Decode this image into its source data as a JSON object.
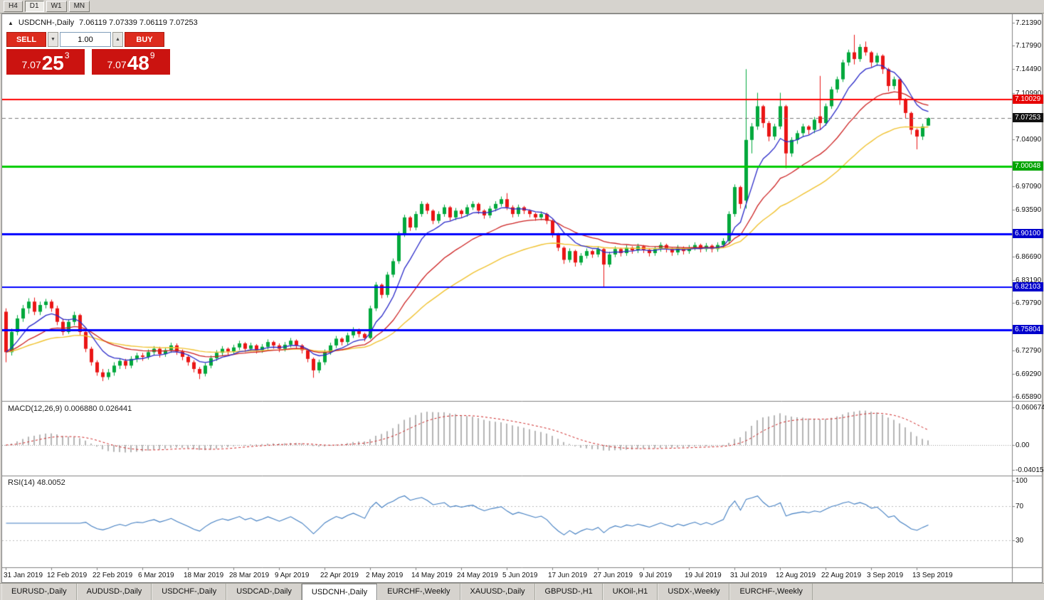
{
  "toolbar": {
    "timeframes": [
      "H4",
      "D1",
      "W1",
      "MN"
    ],
    "active": "D1"
  },
  "chart": {
    "title": "USDCNH-,Daily",
    "ohlc_text": "7.06119 7.07339 7.06119 7.07253"
  },
  "trade_panel": {
    "sell_label": "SELL",
    "buy_label": "BUY",
    "volume": "1.00",
    "sell_price_main": "7.07",
    "sell_price_big": "25",
    "sell_price_sup": "3",
    "buy_price_main": "7.07",
    "buy_price_big": "48",
    "buy_price_sup": "9",
    "panel_red": "#cb1310"
  },
  "price_axis": {
    "ticks": [
      "7.21390",
      "7.17990",
      "7.14490",
      "7.10990",
      "7.04090",
      "6.97090",
      "6.93590",
      "6.86690",
      "6.83190",
      "6.79790",
      "6.72790",
      "6.69290",
      "6.65890"
    ],
    "badges": [
      {
        "value": "7.10029",
        "bg": "#e60000"
      },
      {
        "value": "7.07253",
        "bg": "#111111"
      },
      {
        "value": "7.00048",
        "bg": "#00a400"
      },
      {
        "value": "6.90100",
        "bg": "#0000cc"
      },
      {
        "value": "6.82103",
        "bg": "#0000cc"
      },
      {
        "value": "6.75804",
        "bg": "#0000cc"
      }
    ]
  },
  "levels": [
    {
      "price": 7.10029,
      "color": "#ff0000",
      "width": 2
    },
    {
      "price": 7.00048,
      "color": "#00cc00",
      "width": 3
    },
    {
      "price": 6.901,
      "color": "#0000ff",
      "width": 3
    },
    {
      "price": 6.82103,
      "color": "#0000ff",
      "width": 2
    },
    {
      "price": 6.75804,
      "color": "#0000ff",
      "width": 3
    }
  ],
  "current_price": 7.07253,
  "macd": {
    "label": "MACD(12,26,9) 0.006880 0.026441",
    "axis_max": "0.060674",
    "axis_zero": "0.00",
    "axis_min": "-0.040152",
    "fast": 12,
    "slow": 26,
    "signal": 9
  },
  "rsi": {
    "label": "RSI(14) 48.0052",
    "period": 14,
    "levels": [
      "100",
      "70",
      "30"
    ]
  },
  "date_axis": [
    "31 Jan 2019",
    "12 Feb 2019",
    "22 Feb 2019",
    "6 Mar 2019",
    "18 Mar 2019",
    "28 Mar 2019",
    "9 Apr 2019",
    "22 Apr 2019",
    "2 May 2019",
    "14 May 2019",
    "24 May 2019",
    "5 Jun 2019",
    "17 Jun 2019",
    "27 Jun 2019",
    "9 Jul 2019",
    "19 Jul 2019",
    "31 Jul 2019",
    "12 Aug 2019",
    "22 Aug 2019",
    "3 Sep 2019",
    "13 Sep 2019"
  ],
  "tabs": {
    "items": [
      "EURUSD-,Daily",
      "AUDUSD-,Daily",
      "USDCHF-,Daily",
      "USDCAD-,Daily",
      "USDCNH-,Daily",
      "EURCHF-,Weekly",
      "XAUUSD-,Daily",
      "GBPUSD-,H1",
      "UKOil-,H1",
      "USDX-,Weekly",
      "EURCHF-,Weekly"
    ],
    "active_index": 4
  },
  "chart_data": {
    "type": "candlestick",
    "symbol": "USDCNH",
    "timeframe": "Daily",
    "price_range": [
      6.6589,
      7.2139
    ],
    "label_every_n_bars": 8,
    "x_labels": [
      "31 Jan 2019",
      "12 Feb 2019",
      "22 Feb 2019",
      "6 Mar 2019",
      "18 Mar 2019",
      "28 Mar 2019",
      "9 Apr 2019",
      "22 Apr 2019",
      "2 May 2019",
      "14 May 2019",
      "24 May 2019",
      "5 Jun 2019",
      "17 Jun 2019",
      "27 Jun 2019",
      "9 Jul 2019",
      "19 Jul 2019",
      "31 Jul 2019",
      "12 Aug 2019",
      "22 Aug 2019",
      "3 Sep 2019",
      "13 Sep 2019"
    ],
    "colors": {
      "up": "#00a83c",
      "down": "#ea1515",
      "ma_fast": "#2929c8",
      "ma_mid": "#cc2020",
      "ma_slow": "#f0c230",
      "macd_hist": "#b4b4b4",
      "macd_signal": "#cc2020",
      "rsi": "#3f7cc0"
    },
    "overlays": [
      {
        "name": "ma-fast",
        "period": 8
      },
      {
        "name": "ma-mid",
        "period": 20
      },
      {
        "name": "ma-slow",
        "period": 40
      }
    ],
    "candles_ohlc": [
      [
        6.785,
        6.79,
        6.71,
        6.725
      ],
      [
        6.725,
        6.76,
        6.72,
        6.755
      ],
      [
        6.755,
        6.78,
        6.75,
        6.775
      ],
      [
        6.775,
        6.795,
        6.77,
        6.79
      ],
      [
        6.79,
        6.805,
        6.782,
        6.8
      ],
      [
        6.8,
        6.806,
        6.78,
        6.785
      ],
      [
        6.785,
        6.8,
        6.78,
        6.795
      ],
      [
        6.795,
        6.804,
        6.79,
        6.8
      ],
      [
        6.8,
        6.803,
        6.785,
        6.79
      ],
      [
        6.79,
        6.794,
        6.765,
        6.77
      ],
      [
        6.77,
        6.775,
        6.75,
        6.755
      ],
      [
        6.755,
        6.774,
        6.752,
        6.77
      ],
      [
        6.77,
        6.785,
        6.765,
        6.78
      ],
      [
        6.78,
        6.782,
        6.75,
        6.755
      ],
      [
        6.755,
        6.758,
        6.725,
        6.73
      ],
      [
        6.73,
        6.733,
        6.705,
        6.71
      ],
      [
        6.71,
        6.713,
        6.69,
        6.695
      ],
      [
        6.695,
        6.7,
        6.682,
        6.688
      ],
      [
        6.688,
        6.7,
        6.684,
        6.695
      ],
      [
        6.695,
        6.71,
        6.69,
        6.705
      ],
      [
        6.705,
        6.716,
        6.7,
        6.712
      ],
      [
        6.712,
        6.715,
        6.7,
        6.705
      ],
      [
        6.705,
        6.719,
        6.701,
        6.715
      ],
      [
        6.715,
        6.724,
        6.71,
        6.72
      ],
      [
        6.72,
        6.724,
        6.712,
        6.718
      ],
      [
        6.718,
        6.729,
        6.714,
        6.725
      ],
      [
        6.725,
        6.734,
        6.72,
        6.73
      ],
      [
        6.73,
        6.733,
        6.717,
        6.722
      ],
      [
        6.722,
        6.732,
        6.718,
        6.728
      ],
      [
        6.728,
        6.739,
        6.724,
        6.735
      ],
      [
        6.735,
        6.738,
        6.721,
        6.726
      ],
      [
        6.726,
        6.729,
        6.713,
        6.718
      ],
      [
        6.718,
        6.721,
        6.705,
        6.71
      ],
      [
        6.71,
        6.713,
        6.695,
        6.7
      ],
      [
        6.7,
        6.703,
        6.685,
        6.693
      ],
      [
        6.693,
        6.709,
        6.689,
        6.705
      ],
      [
        6.705,
        6.72,
        6.701,
        6.716
      ],
      [
        6.716,
        6.728,
        6.712,
        6.724
      ],
      [
        6.724,
        6.734,
        6.72,
        6.73
      ],
      [
        6.73,
        6.732,
        6.721,
        6.726
      ],
      [
        6.726,
        6.736,
        6.722,
        6.732
      ],
      [
        6.732,
        6.742,
        6.728,
        6.738
      ],
      [
        6.738,
        6.74,
        6.725,
        6.73
      ],
      [
        6.73,
        6.739,
        6.726,
        6.735
      ],
      [
        6.735,
        6.737,
        6.723,
        6.728
      ],
      [
        6.728,
        6.737,
        6.724,
        6.733
      ],
      [
        6.733,
        6.744,
        6.729,
        6.74
      ],
      [
        6.74,
        6.742,
        6.73,
        6.735
      ],
      [
        6.735,
        6.738,
        6.725,
        6.73
      ],
      [
        6.73,
        6.74,
        6.726,
        6.736
      ],
      [
        6.736,
        6.746,
        6.732,
        6.742
      ],
      [
        6.742,
        6.744,
        6.73,
        6.735
      ],
      [
        6.735,
        6.737,
        6.723,
        6.728
      ],
      [
        6.728,
        6.73,
        6.71,
        6.715
      ],
      [
        6.715,
        6.717,
        6.687,
        6.698
      ],
      [
        6.698,
        6.714,
        6.694,
        6.71
      ],
      [
        6.71,
        6.729,
        6.706,
        6.725
      ],
      [
        6.725,
        6.739,
        6.721,
        6.735
      ],
      [
        6.735,
        6.749,
        6.731,
        6.745
      ],
      [
        6.745,
        6.747,
        6.735,
        6.74
      ],
      [
        6.74,
        6.754,
        6.736,
        6.75
      ],
      [
        6.75,
        6.762,
        6.746,
        6.758
      ],
      [
        6.758,
        6.76,
        6.747,
        6.752
      ],
      [
        6.752,
        6.754,
        6.741,
        6.746
      ],
      [
        6.746,
        6.794,
        6.744,
        6.79
      ],
      [
        6.79,
        6.829,
        6.786,
        6.825
      ],
      [
        6.825,
        6.827,
        6.805,
        6.81
      ],
      [
        6.81,
        6.844,
        6.806,
        6.84
      ],
      [
        6.84,
        6.864,
        6.836,
        6.86
      ],
      [
        6.86,
        6.904,
        6.856,
        6.9
      ],
      [
        6.9,
        6.929,
        6.896,
        6.925
      ],
      [
        6.925,
        6.927,
        6.905,
        6.91
      ],
      [
        6.91,
        6.934,
        6.906,
        6.93
      ],
      [
        6.93,
        6.949,
        6.926,
        6.945
      ],
      [
        6.945,
        6.947,
        6.93,
        6.935
      ],
      [
        6.935,
        6.937,
        6.915,
        6.92
      ],
      [
        6.92,
        6.934,
        6.916,
        6.93
      ],
      [
        6.93,
        6.944,
        6.926,
        6.94
      ],
      [
        6.94,
        6.942,
        6.92,
        6.925
      ],
      [
        6.925,
        6.939,
        6.921,
        6.935
      ],
      [
        6.935,
        6.937,
        6.925,
        6.93
      ],
      [
        6.93,
        6.944,
        6.926,
        6.94
      ],
      [
        6.94,
        6.949,
        6.936,
        6.945
      ],
      [
        6.945,
        6.947,
        6.93,
        6.935
      ],
      [
        6.935,
        6.937,
        6.923,
        6.928
      ],
      [
        6.928,
        6.942,
        6.924,
        6.938
      ],
      [
        6.938,
        6.949,
        6.934,
        6.945
      ],
      [
        6.945,
        6.956,
        6.941,
        6.952
      ],
      [
        6.952,
        6.961,
        6.936,
        6.94
      ],
      [
        6.94,
        6.943,
        6.925,
        6.93
      ],
      [
        6.93,
        6.944,
        6.926,
        6.94
      ],
      [
        6.94,
        6.942,
        6.93,
        6.935
      ],
      [
        6.935,
        6.937,
        6.925,
        6.93
      ],
      [
        6.93,
        6.932,
        6.92,
        6.925
      ],
      [
        6.925,
        6.934,
        6.921,
        6.93
      ],
      [
        6.93,
        6.932,
        6.915,
        6.92
      ],
      [
        6.92,
        6.922,
        6.895,
        6.9
      ],
      [
        6.9,
        6.902,
        6.875,
        6.88
      ],
      [
        6.88,
        6.882,
        6.856,
        6.862
      ],
      [
        6.862,
        6.879,
        6.858,
        6.875
      ],
      [
        6.875,
        6.877,
        6.852,
        6.858
      ],
      [
        6.858,
        6.872,
        6.854,
        6.868
      ],
      [
        6.868,
        6.879,
        6.864,
        6.875
      ],
      [
        6.875,
        6.877,
        6.865,
        6.87
      ],
      [
        6.87,
        6.882,
        6.866,
        6.878
      ],
      [
        6.878,
        6.88,
        6.822,
        6.855
      ],
      [
        6.855,
        6.874,
        6.851,
        6.87
      ],
      [
        6.87,
        6.882,
        6.866,
        6.878
      ],
      [
        6.878,
        6.88,
        6.867,
        6.872
      ],
      [
        6.872,
        6.884,
        6.868,
        6.88
      ],
      [
        6.88,
        6.882,
        6.871,
        6.876
      ],
      [
        6.876,
        6.886,
        6.872,
        6.882
      ],
      [
        6.882,
        6.884,
        6.872,
        6.877
      ],
      [
        6.877,
        6.879,
        6.867,
        6.872
      ],
      [
        6.872,
        6.882,
        6.868,
        6.878
      ],
      [
        6.878,
        6.888,
        6.874,
        6.884
      ],
      [
        6.884,
        6.886,
        6.873,
        6.878
      ],
      [
        6.878,
        6.88,
        6.868,
        6.873
      ],
      [
        6.873,
        6.884,
        6.869,
        6.88
      ],
      [
        6.88,
        6.882,
        6.87,
        6.875
      ],
      [
        6.875,
        6.884,
        6.871,
        6.88
      ],
      [
        6.88,
        6.888,
        6.876,
        6.884
      ],
      [
        6.884,
        6.886,
        6.873,
        6.878
      ],
      [
        6.878,
        6.887,
        6.874,
        6.883
      ],
      [
        6.883,
        6.885,
        6.873,
        6.878
      ],
      [
        6.878,
        6.888,
        6.874,
        6.884
      ],
      [
        6.884,
        6.894,
        6.88,
        6.89
      ],
      [
        6.89,
        6.934,
        6.886,
        6.93
      ],
      [
        6.93,
        6.974,
        6.926,
        6.97
      ],
      [
        6.97,
        6.972,
        6.938,
        6.945
      ],
      [
        6.95,
        7.145,
        6.938,
        7.04
      ],
      [
        7.04,
        7.065,
        7.02,
        7.06
      ],
      [
        7.06,
        7.11,
        7.055,
        7.09
      ],
      [
        7.09,
        7.092,
        7.058,
        7.065
      ],
      [
        7.065,
        7.068,
        7.038,
        7.045
      ],
      [
        7.045,
        7.064,
        7.04,
        7.06
      ],
      [
        7.06,
        7.11,
        7.056,
        7.09
      ],
      [
        7.09,
        7.092,
        6.998,
        7.02
      ],
      [
        7.02,
        7.044,
        7.015,
        7.04
      ],
      [
        7.04,
        7.054,
        7.034,
        7.05
      ],
      [
        7.05,
        7.064,
        7.045,
        7.06
      ],
      [
        7.06,
        7.062,
        7.048,
        7.055
      ],
      [
        7.055,
        7.074,
        7.05,
        7.07
      ],
      [
        7.075,
        7.135,
        7.055,
        7.065
      ],
      [
        7.065,
        7.094,
        7.061,
        7.09
      ],
      [
        7.09,
        7.119,
        7.086,
        7.115
      ],
      [
        7.115,
        7.134,
        7.11,
        7.13
      ],
      [
        7.13,
        7.159,
        7.126,
        7.155
      ],
      [
        7.155,
        7.174,
        7.15,
        7.17
      ],
      [
        7.17,
        7.196,
        7.152,
        7.16
      ],
      [
        7.16,
        7.182,
        7.156,
        7.178
      ],
      [
        7.178,
        7.186,
        7.165,
        7.17
      ],
      [
        7.17,
        7.172,
        7.148,
        7.155
      ],
      [
        7.155,
        7.169,
        7.15,
        7.165
      ],
      [
        7.165,
        7.167,
        7.138,
        7.145
      ],
      [
        7.145,
        7.147,
        7.112,
        7.12
      ],
      [
        7.12,
        7.134,
        7.115,
        7.13
      ],
      [
        7.13,
        7.132,
        7.092,
        7.1
      ],
      [
        7.1,
        7.102,
        7.072,
        7.08
      ],
      [
        7.08,
        7.082,
        7.048,
        7.055
      ],
      [
        7.055,
        7.057,
        7.026,
        7.045
      ],
      [
        7.045,
        7.064,
        7.04,
        7.06
      ],
      [
        7.06119,
        7.07339,
        7.06119,
        7.07253
      ]
    ]
  }
}
